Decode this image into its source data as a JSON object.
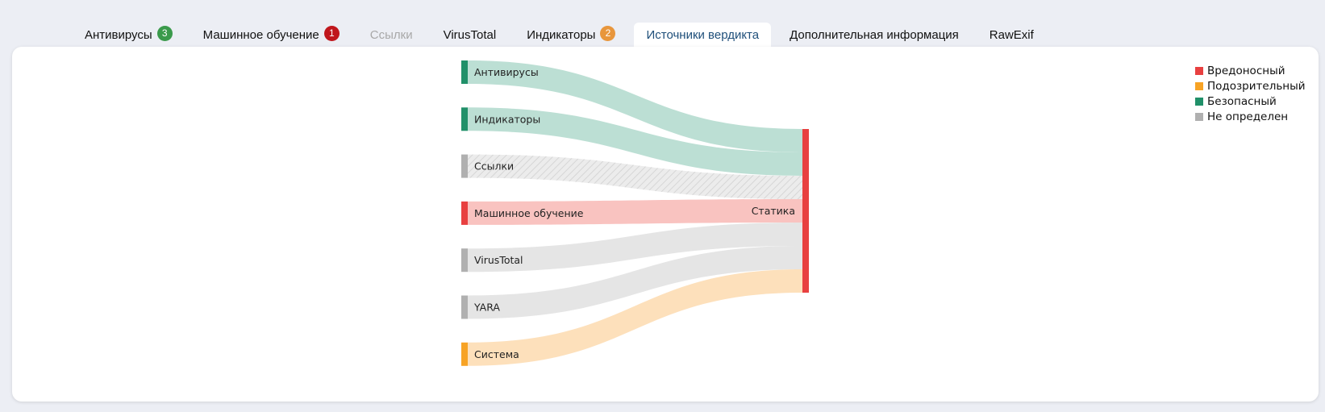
{
  "tabs": [
    {
      "label": "Антивирусы",
      "badge": "3",
      "badge_color": "#3a9a4b",
      "state": "normal"
    },
    {
      "label": "Машинное обучение",
      "badge": "1",
      "badge_color": "#c0161c",
      "state": "normal"
    },
    {
      "label": "Ссылки",
      "badge": null,
      "state": "disabled"
    },
    {
      "label": "VirusTotal",
      "badge": null,
      "state": "normal"
    },
    {
      "label": "Индикаторы",
      "badge": "2",
      "badge_color": "#e8963c",
      "state": "normal"
    },
    {
      "label": "Источники вердикта",
      "badge": null,
      "state": "active"
    },
    {
      "label": "Дополнительная информация",
      "badge": null,
      "state": "normal"
    },
    {
      "label": "RawExif",
      "badge": null,
      "state": "normal"
    }
  ],
  "legend": [
    {
      "label": "Вредоносный",
      "color": "#e84040"
    },
    {
      "label": "Подозрительный",
      "color": "#f7a325"
    },
    {
      "label": "Безопасный",
      "color": "#209069"
    },
    {
      "label": "Не определен",
      "color": "#b0b0b0"
    }
  ],
  "chart_data": {
    "type": "sankey",
    "target": {
      "label": "Статика",
      "verdict": "malicious"
    },
    "sources": [
      {
        "label": "Антивирусы",
        "verdict": "safe",
        "value": 1
      },
      {
        "label": "Индикаторы",
        "verdict": "safe",
        "value": 1
      },
      {
        "label": "Ссылки",
        "verdict": "undefined",
        "value": 1,
        "hatched": true
      },
      {
        "label": "Машинное обучение",
        "verdict": "malicious",
        "value": 1
      },
      {
        "label": "VirusTotal",
        "verdict": "undefined",
        "value": 1
      },
      {
        "label": "YARA",
        "verdict": "undefined",
        "value": 1
      },
      {
        "label": "Система",
        "verdict": "suspicious",
        "value": 1
      }
    ],
    "colors": {
      "malicious": "#e84040",
      "suspicious": "#f7a325",
      "safe": "#209069",
      "undefined": "#b0b0b0"
    },
    "link_colors": {
      "malicious": "#f9c3c0",
      "suspicious": "#fde0bb",
      "safe": "#bcdfd4",
      "undefined": "#e5e5e5"
    }
  }
}
